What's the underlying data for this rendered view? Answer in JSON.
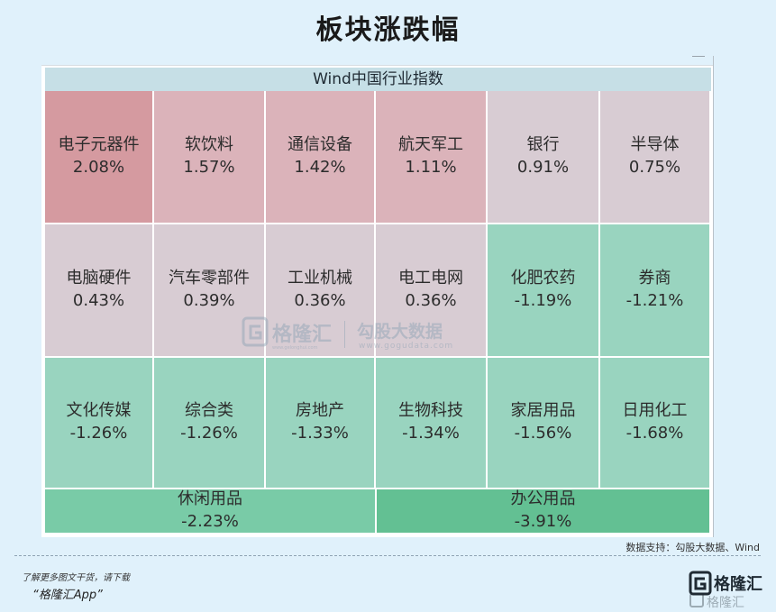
{
  "title": "板块涨跌幅",
  "header": "Wind中国行业指数",
  "watermark": {
    "brand": "格隆汇",
    "brand_site": "www.gelonghui.com",
    "data_brand": "勾股大数据",
    "data_site": "www.gogudata.com"
  },
  "source": "数据支持：勾股大数据、Wind",
  "footer": {
    "note": "了解更多图文干货，请下载",
    "app": "“格隆汇App”",
    "logo_text": "格隆汇"
  },
  "colors": {
    "strong_up": "#d59aa0",
    "up": "#dbb3ba",
    "slight_up": "#d8ccd3",
    "down": "#99d4bf",
    "strong_down": "#79cba7",
    "strongest_down": "#63c093"
  },
  "chart_data": {
    "type": "heatmap",
    "title": "板块涨跌幅",
    "subtitle": "Wind中国行业指数",
    "unit": "%",
    "cells": [
      {
        "name": "电子元器件",
        "value": 2.08,
        "label": "2.08%"
      },
      {
        "name": "软饮料",
        "value": 1.57,
        "label": "1.57%"
      },
      {
        "name": "通信设备",
        "value": 1.42,
        "label": "1.42%"
      },
      {
        "name": "航天军工",
        "value": 1.11,
        "label": "1.11%"
      },
      {
        "name": "银行",
        "value": 0.91,
        "label": "0.91%"
      },
      {
        "name": "半导体",
        "value": 0.75,
        "label": "0.75%"
      },
      {
        "name": "电脑硬件",
        "value": 0.43,
        "label": "0.43%"
      },
      {
        "name": "汽车零部件",
        "value": 0.39,
        "label": "0.39%"
      },
      {
        "name": "工业机械",
        "value": 0.36,
        "label": "0.36%"
      },
      {
        "name": "电工电网",
        "value": 0.36,
        "label": "0.36%"
      },
      {
        "name": "化肥农药",
        "value": -1.19,
        "label": "-1.19%"
      },
      {
        "name": "券商",
        "value": -1.21,
        "label": "-1.21%"
      },
      {
        "name": "文化传媒",
        "value": -1.26,
        "label": "-1.26%"
      },
      {
        "name": "综合类",
        "value": -1.26,
        "label": "-1.26%"
      },
      {
        "name": "房地产",
        "value": -1.33,
        "label": "-1.33%"
      },
      {
        "name": "生物科技",
        "value": -1.34,
        "label": "-1.34%"
      },
      {
        "name": "家居用品",
        "value": -1.56,
        "label": "-1.56%"
      },
      {
        "name": "日用化工",
        "value": -1.68,
        "label": "-1.68%"
      },
      {
        "name": "休闲用品",
        "value": -2.23,
        "label": "-2.23%"
      },
      {
        "name": "办公用品",
        "value": -3.91,
        "label": "-3.91%"
      }
    ]
  }
}
